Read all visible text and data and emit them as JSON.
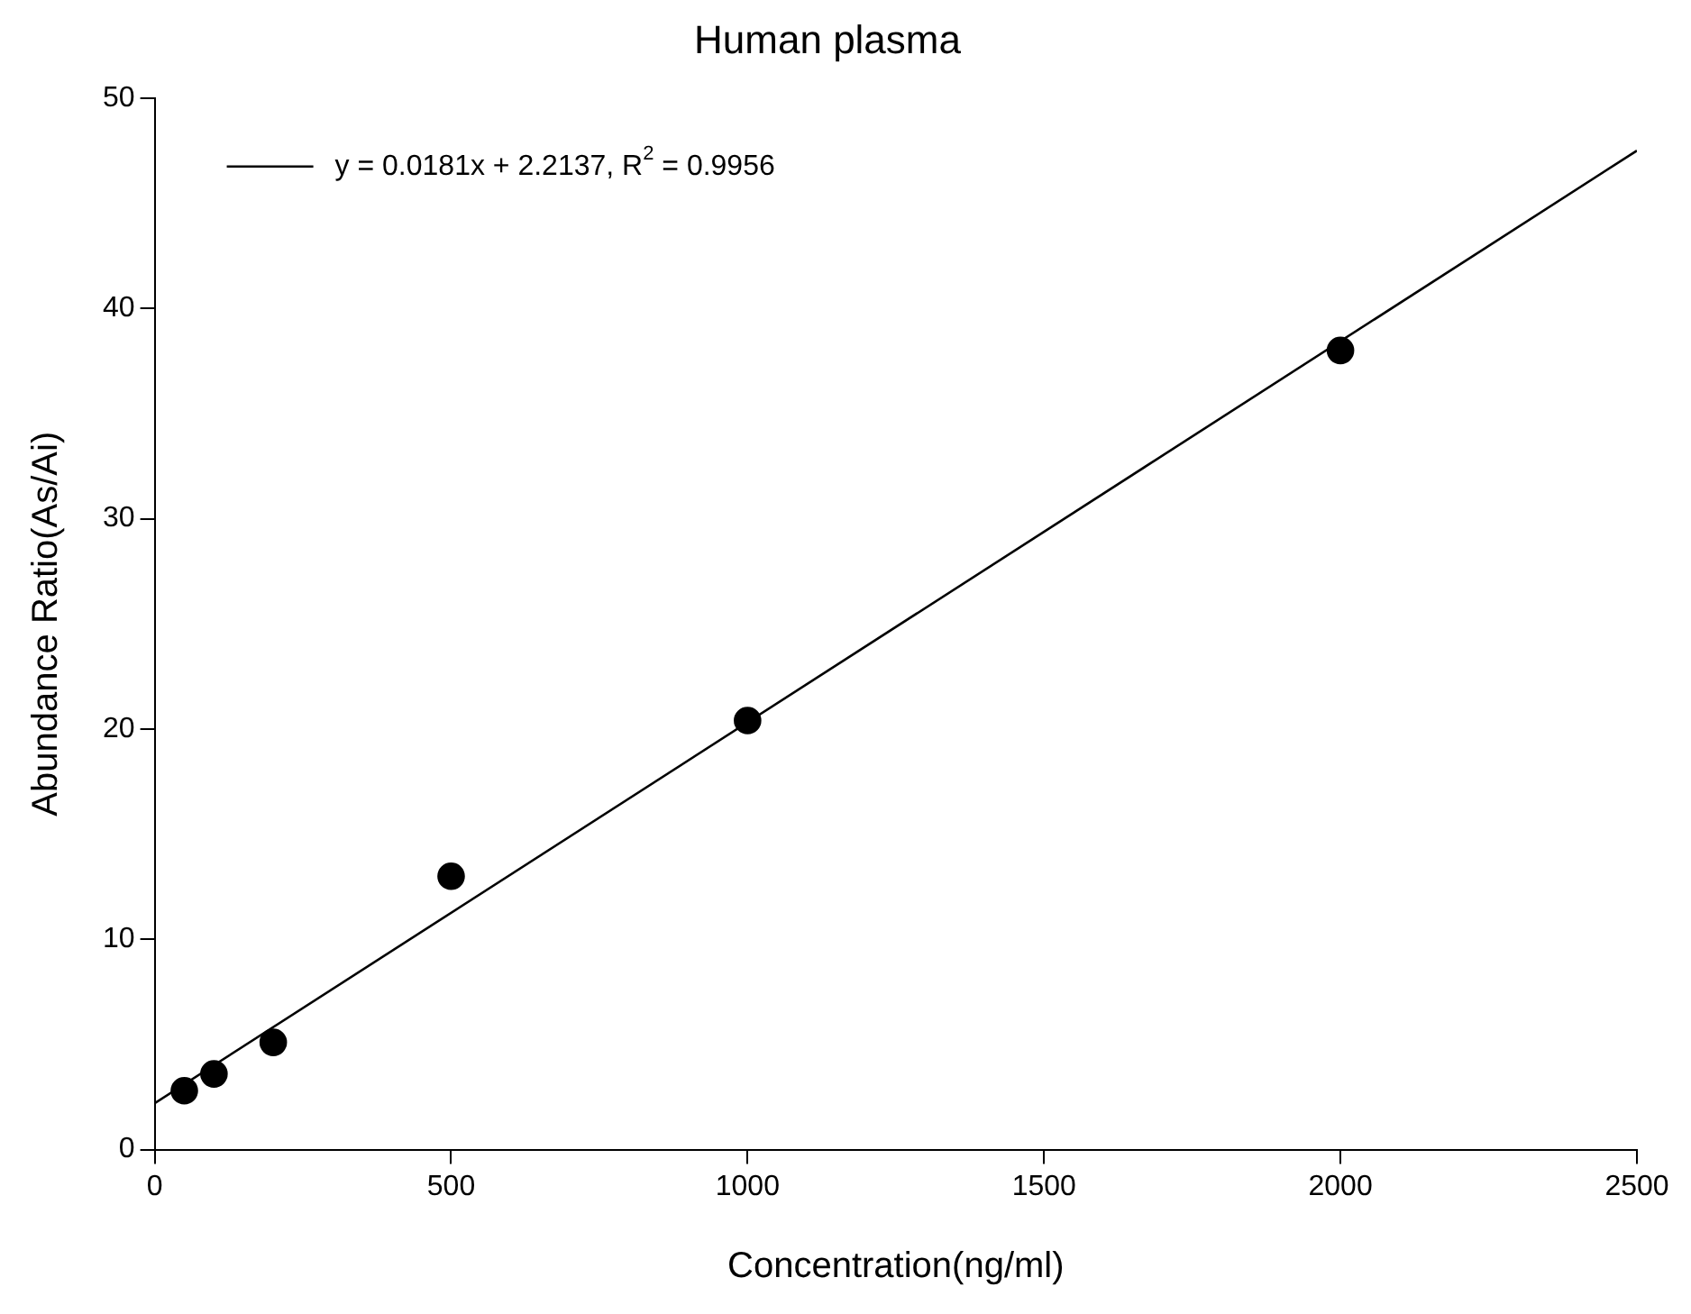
{
  "chart_data": {
    "type": "scatter",
    "title": "Human plasma",
    "xlabel": "Concentration(ng/ml)",
    "ylabel": "Abundance Ratio(As/Ai)",
    "series": [
      {
        "color": "#000000",
        "marker": "circle",
        "x": [
          50,
          100,
          200,
          500,
          1000,
          2000
        ],
        "values": [
          2.8,
          3.6,
          5.1,
          13.0,
          20.4,
          38.0
        ]
      },
      {
        "type": "line",
        "name": "y = 0.0181x + 2.2137, R$^{2}$ = 0.9956",
        "color": "#000000",
        "marker": "none",
        "line_style": "solid",
        "x": [
          0,
          2500
        ],
        "values": [
          2.2,
          47.5
        ]
      }
    ],
    "xlim": [
      0,
      2500
    ],
    "xticks": [
      0,
      500,
      1000,
      1500,
      2000,
      2500
    ],
    "ylim": [
      0,
      50
    ],
    "yticks": [
      0,
      10,
      20,
      30,
      40,
      50
    ],
    "grid": false,
    "legend": "top left"
  }
}
